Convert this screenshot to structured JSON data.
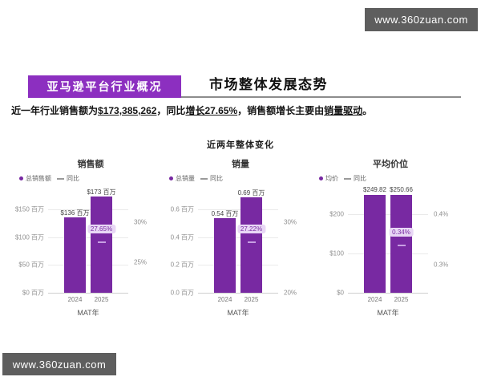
{
  "watermarks": {
    "top": "www.360zuan.com",
    "bottom": "www.360zuan.com"
  },
  "header": {
    "badge": "亚马逊平台行业概况",
    "title": "市场整体发展态势",
    "summary": {
      "prefix": "近一年行业销售额为",
      "sales": "$173,385,262",
      "mid1": "，同比",
      "growth": "增长27.65%",
      "mid2": "，销售额增长主要由",
      "driver": "销量驱动",
      "suffix": "。"
    }
  },
  "section": {
    "title": "近两年整体变化"
  },
  "colors": {
    "bar_purple": "#7829A2",
    "badge_purple": "#8C2FC0",
    "pill_bg": "#E8D7F5",
    "pill_text": "#7829A2",
    "dash_marker": "#C79FE3",
    "watermark_bg": "#5E5E5E"
  },
  "chart_data": [
    {
      "type": "bar",
      "title": "销售额",
      "legend": {
        "bar": "总销售额",
        "line": "同比"
      },
      "categories": [
        "2024",
        "2025"
      ],
      "values": [
        136,
        173
      ],
      "value_labels": [
        "$136 百万",
        "$173 百万"
      ],
      "ylim": [
        0,
        185
      ],
      "left_ticks": [
        {
          "value": 150,
          "label": "$150 百万"
        },
        {
          "value": 100,
          "label": "$100 百万"
        },
        {
          "value": 50,
          "label": "$50 百万"
        },
        {
          "value": 0,
          "label": "$0 百万"
        }
      ],
      "right_lim": [
        21.2,
        34.0
      ],
      "right_ticks": [
        {
          "value": 30,
          "label": "30%"
        },
        {
          "value": 25,
          "label": "25%"
        }
      ],
      "yoy": {
        "value": 27.65,
        "label": "27.65%",
        "category": "2025"
      },
      "xlabel": "MAT年"
    },
    {
      "type": "bar",
      "title": "销量",
      "legend": {
        "bar": "总销量",
        "line": "同比"
      },
      "categories": [
        "2024",
        "2025"
      ],
      "values": [
        0.54,
        0.69
      ],
      "value_labels": [
        "0.54 百万",
        "0.69 百万"
      ],
      "ylim": [
        0,
        0.74
      ],
      "left_ticks": [
        {
          "value": 0.6,
          "label": "0.6 百万"
        },
        {
          "value": 0.4,
          "label": "0.4 百万"
        },
        {
          "value": 0.2,
          "label": "0.2 百万"
        },
        {
          "value": 0,
          "label": "0.0 百万"
        }
      ],
      "right_lim": [
        20,
        34.5
      ],
      "right_ticks": [
        {
          "value": 30,
          "label": "30%"
        },
        {
          "value": 20,
          "label": "20%"
        }
      ],
      "yoy": {
        "value": 27.22,
        "label": "27.22%",
        "category": "2025"
      },
      "xlabel": "MAT年"
    },
    {
      "type": "bar",
      "title": "平均价位",
      "legend": {
        "bar": "均价",
        "line": "同比"
      },
      "categories": [
        "2024",
        "2025"
      ],
      "values": [
        249.82,
        250.66
      ],
      "value_labels": [
        "$249.82",
        "$250.66"
      ],
      "ylim": [
        0,
        262
      ],
      "left_ticks": [
        {
          "value": 200,
          "label": "$200"
        },
        {
          "value": 100,
          "label": "$100"
        },
        {
          "value": 0,
          "label": "$0"
        }
      ],
      "right_lim": [
        0.245,
        0.448
      ],
      "right_ticks": [
        {
          "value": 0.4,
          "label": "0.4%"
        },
        {
          "value": 0.3,
          "label": "0.3%"
        }
      ],
      "yoy": {
        "value": 0.34,
        "label": "0.34%",
        "category": "2025"
      },
      "xlabel": "MAT年"
    }
  ]
}
